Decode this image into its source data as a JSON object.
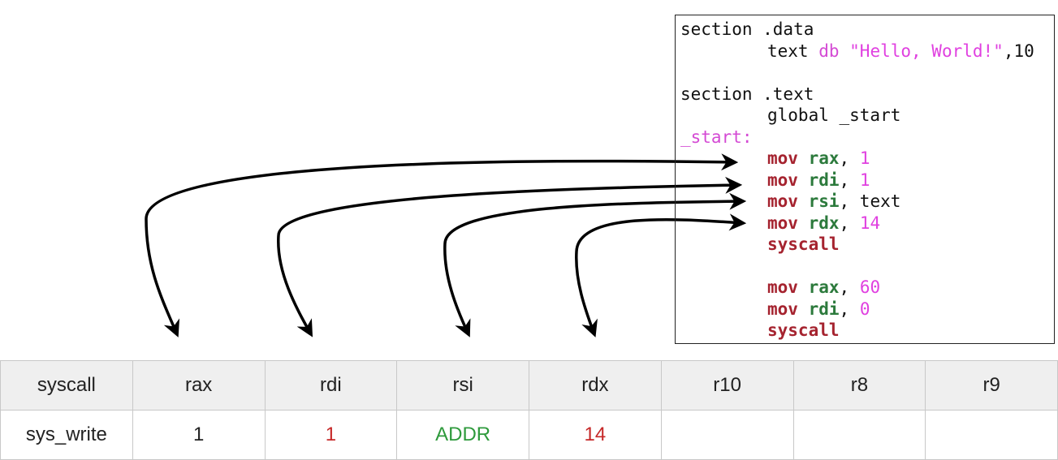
{
  "code": {
    "lines": [
      {
        "indent": false,
        "parts": [
          {
            "t": "section .data",
            "c": ""
          }
        ]
      },
      {
        "indent": true,
        "parts": [
          {
            "t": "text ",
            "c": ""
          },
          {
            "t": "db",
            "c": "lbl"
          },
          {
            "t": " \"Hello, World!\"",
            "c": "str"
          },
          {
            "t": ",10",
            "c": ""
          }
        ]
      },
      {
        "indent": false,
        "parts": [
          {
            "t": "",
            "c": ""
          }
        ]
      },
      {
        "indent": false,
        "parts": [
          {
            "t": "section .text",
            "c": ""
          }
        ]
      },
      {
        "indent": true,
        "parts": [
          {
            "t": "global _start",
            "c": ""
          }
        ]
      },
      {
        "indent": false,
        "parts": [
          {
            "t": "_start:",
            "c": "lbl"
          }
        ]
      },
      {
        "indent": true,
        "parts": [
          {
            "t": "mov ",
            "c": "kw"
          },
          {
            "t": "rax",
            "c": "reg"
          },
          {
            "t": ", ",
            "c": ""
          },
          {
            "t": "1",
            "c": "num"
          }
        ]
      },
      {
        "indent": true,
        "parts": [
          {
            "t": "mov ",
            "c": "kw"
          },
          {
            "t": "rdi",
            "c": "reg"
          },
          {
            "t": ", ",
            "c": ""
          },
          {
            "t": "1",
            "c": "num"
          }
        ]
      },
      {
        "indent": true,
        "parts": [
          {
            "t": "mov ",
            "c": "kw"
          },
          {
            "t": "rsi",
            "c": "reg"
          },
          {
            "t": ", text",
            "c": ""
          }
        ]
      },
      {
        "indent": true,
        "parts": [
          {
            "t": "mov ",
            "c": "kw"
          },
          {
            "t": "rdx",
            "c": "reg"
          },
          {
            "t": ", ",
            "c": ""
          },
          {
            "t": "14",
            "c": "num"
          }
        ]
      },
      {
        "indent": true,
        "parts": [
          {
            "t": "syscall",
            "c": "kw"
          }
        ]
      },
      {
        "indent": false,
        "parts": [
          {
            "t": "",
            "c": ""
          }
        ]
      },
      {
        "indent": true,
        "parts": [
          {
            "t": "mov ",
            "c": "kw"
          },
          {
            "t": "rax",
            "c": "reg"
          },
          {
            "t": ", ",
            "c": ""
          },
          {
            "t": "60",
            "c": "num"
          }
        ]
      },
      {
        "indent": true,
        "parts": [
          {
            "t": "mov ",
            "c": "kw"
          },
          {
            "t": "rdi",
            "c": "reg"
          },
          {
            "t": ", ",
            "c": ""
          },
          {
            "t": "0",
            "c": "num"
          }
        ]
      },
      {
        "indent": true,
        "parts": [
          {
            "t": "syscall",
            "c": "kw"
          }
        ]
      }
    ]
  },
  "table": {
    "headers": [
      "syscall",
      "rax",
      "rdi",
      "rsi",
      "rdx",
      "r10",
      "r8",
      "r9"
    ],
    "row": [
      "sys_write",
      "1",
      "1",
      "ADDR",
      "14",
      "",
      "",
      ""
    ]
  },
  "colors": {
    "keyword": "#a5232f",
    "register": "#2c7a3c",
    "number": "#e040e0",
    "value_red": "#c62828",
    "value_green": "#2e9a3c"
  }
}
